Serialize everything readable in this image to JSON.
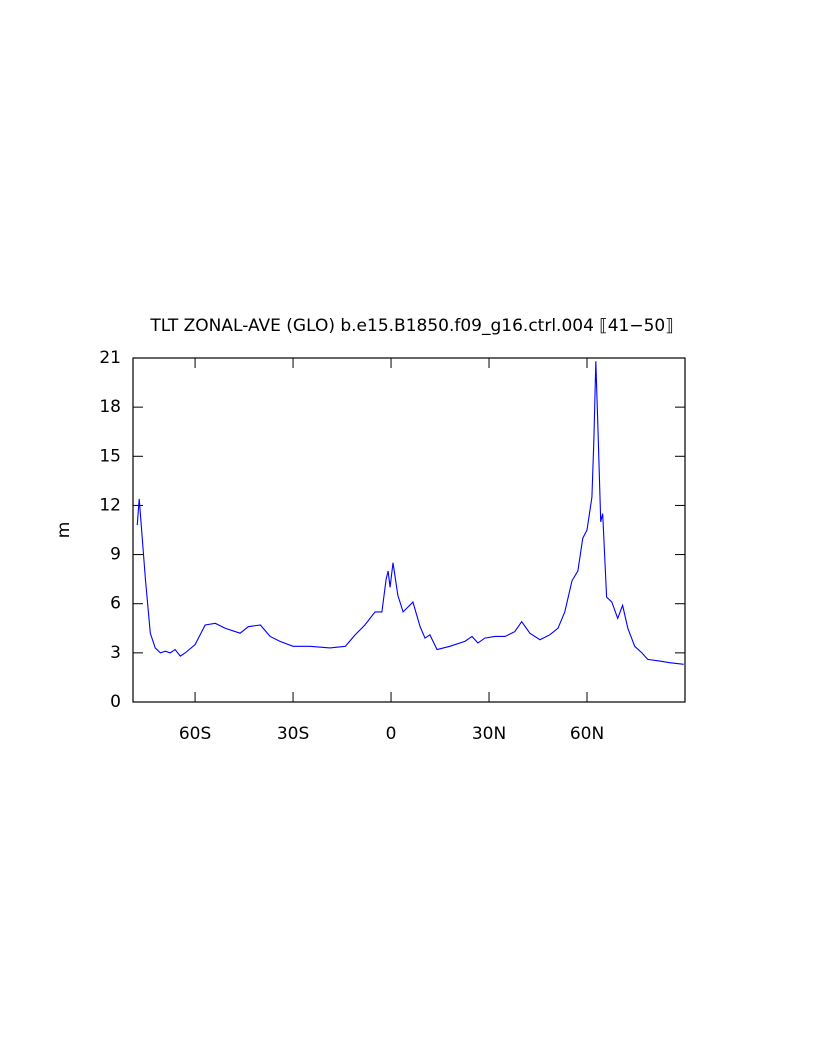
{
  "chart_data": {
    "type": "line",
    "title": "TLT ZONAL-AVE (GLO) b.e15.B1850.f09_g16.ctrl.004 ⟦41−50⟧",
    "y_label": "m",
    "x": [
      -77.7,
      -77.1,
      -75.2,
      -73.7,
      -72.2,
      -70.6,
      -69.1,
      -67.6,
      -66.1,
      -64.5,
      -63,
      -60,
      -56.9,
      -53.8,
      -50.8,
      -46.2,
      -43.7,
      -40,
      -37,
      -34,
      -30,
      -24.8,
      -18.7,
      -14,
      -11,
      -8,
      -4.9,
      -2.8,
      -1.5,
      -0.9,
      -0.3,
      0.6,
      2.1,
      3.7,
      5.2,
      6.7,
      8.9,
      10.4,
      11.9,
      14.1,
      18,
      22.6,
      24.8,
      26.6,
      28.7,
      31.8,
      34.9,
      37.9,
      40,
      42.5,
      45.6,
      48.6,
      51.1,
      53.2,
      55.4,
      57.2,
      58.7,
      60,
      61.5,
      62.1,
      62.7,
      63.3,
      64.2,
      64.8,
      66,
      67.6,
      69.4,
      70.9,
      72.5,
      74.6,
      76.8,
      78.6,
      82.3,
      85.3,
      89.6
    ],
    "series": [
      {
        "name": "TLT",
        "color": "#0000ff",
        "values": [
          10.8,
          12.4,
          7.5,
          4.2,
          3.3,
          3.0,
          3.1,
          3.0,
          3.2,
          2.8,
          3.0,
          3.5,
          4.7,
          4.8,
          4.5,
          4.2,
          4.6,
          4.7,
          4.0,
          3.7,
          3.4,
          3.4,
          3.3,
          3.4,
          4.1,
          4.7,
          5.5,
          5.5,
          7.5,
          8.0,
          7.0,
          8.5,
          6.5,
          5.5,
          5.8,
          6.1,
          4.6,
          3.9,
          4.1,
          3.2,
          3.4,
          3.7,
          4.0,
          3.6,
          3.9,
          4.0,
          4.0,
          4.3,
          4.9,
          4.2,
          3.8,
          4.1,
          4.5,
          5.5,
          7.4,
          8.0,
          10.0,
          10.5,
          12.5,
          16.0,
          20.8,
          17.0,
          11.0,
          11.5,
          6.4,
          6.1,
          5.1,
          5.9,
          4.5,
          3.4,
          3.0,
          2.6,
          2.5,
          2.4,
          2.3
        ]
      }
    ],
    "xlim": [
      -79,
      90
    ],
    "xticks": [
      {
        "value": -60,
        "label": "60S"
      },
      {
        "value": -30,
        "label": "30S"
      },
      0,
      {
        "value": 30,
        "label": "30N"
      },
      {
        "value": 60,
        "label": "60N"
      }
    ],
    "ylim": [
      0,
      21
    ],
    "yticks": [
      0,
      3,
      6,
      9,
      12,
      15,
      18,
      21
    ]
  }
}
